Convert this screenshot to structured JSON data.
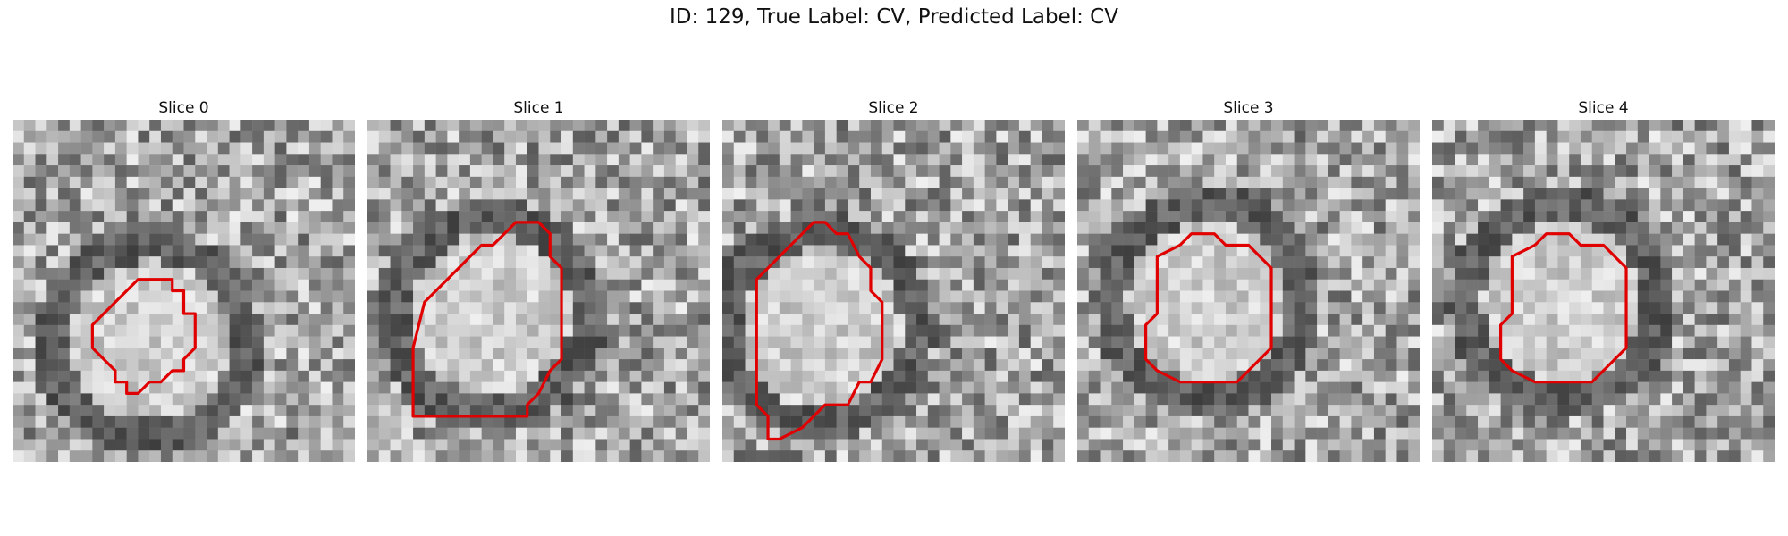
{
  "figure": {
    "title": "ID: 129, True Label: CV, Predicted Label: CV",
    "contour_color": "#e00000"
  },
  "panels": [
    {
      "title": "Slice 0",
      "image": "grayscale MRI patch with a roughly circular bright region",
      "contour": [
        [
          9,
          16
        ],
        [
          11,
          14
        ],
        [
          14,
          14
        ],
        [
          14,
          15
        ],
        [
          15,
          15
        ],
        [
          15,
          17
        ],
        [
          16,
          17
        ],
        [
          16,
          20
        ],
        [
          15,
          21
        ],
        [
          15,
          22
        ],
        [
          14,
          22
        ],
        [
          13,
          23
        ],
        [
          12,
          23
        ],
        [
          11,
          24
        ],
        [
          10,
          24
        ],
        [
          10,
          23
        ],
        [
          9,
          23
        ],
        [
          9,
          22
        ],
        [
          7,
          20
        ],
        [
          7,
          18
        ],
        [
          9,
          16
        ]
      ]
    },
    {
      "title": "Slice 1",
      "image": "grayscale MRI patch with large bright circular region",
      "contour": [
        [
          7,
          14
        ],
        [
          8,
          13
        ],
        [
          10,
          11
        ],
        [
          11,
          11
        ],
        [
          13,
          9
        ],
        [
          15,
          9
        ],
        [
          16,
          10
        ],
        [
          16,
          12
        ],
        [
          17,
          13
        ],
        [
          17,
          21
        ],
        [
          16,
          22
        ],
        [
          15,
          24
        ],
        [
          14,
          25
        ],
        [
          14,
          26
        ],
        [
          8,
          26
        ],
        [
          4,
          26
        ],
        [
          4,
          22
        ],
        [
          4,
          20
        ],
        [
          5,
          16
        ],
        [
          6,
          15
        ],
        [
          7,
          14
        ]
      ]
    },
    {
      "title": "Slice 2",
      "image": "grayscale MRI patch with dark ring around bright center",
      "contour": [
        [
          6,
          11
        ],
        [
          8,
          9
        ],
        [
          9,
          9
        ],
        [
          10,
          10
        ],
        [
          11,
          10
        ],
        [
          12,
          12
        ],
        [
          13,
          13
        ],
        [
          13,
          15
        ],
        [
          14,
          16
        ],
        [
          14,
          21
        ],
        [
          13,
          23
        ],
        [
          12,
          23
        ],
        [
          11,
          25
        ],
        [
          9,
          25
        ],
        [
          8,
          26
        ],
        [
          7,
          27
        ],
        [
          5,
          28
        ],
        [
          4,
          28
        ],
        [
          4,
          26
        ],
        [
          3,
          25
        ],
        [
          3,
          14
        ],
        [
          4,
          13
        ],
        [
          6,
          11
        ]
      ]
    },
    {
      "title": "Slice 3",
      "image": "grayscale MRI patch with bright circular region",
      "contour": [
        [
          9,
          11
        ],
        [
          10,
          10
        ],
        [
          12,
          10
        ],
        [
          13,
          11
        ],
        [
          15,
          11
        ],
        [
          16,
          12
        ],
        [
          17,
          13
        ],
        [
          17,
          20
        ],
        [
          16,
          21
        ],
        [
          15,
          22
        ],
        [
          14,
          23
        ],
        [
          9,
          23
        ],
        [
          7,
          22
        ],
        [
          6,
          21
        ],
        [
          6,
          18
        ],
        [
          7,
          17
        ],
        [
          7,
          12
        ],
        [
          9,
          11
        ]
      ]
    },
    {
      "title": "Slice 4",
      "image": "grayscale MRI patch with bright circular region",
      "contour": [
        [
          9,
          11
        ],
        [
          10,
          10
        ],
        [
          12,
          10
        ],
        [
          13,
          11
        ],
        [
          15,
          11
        ],
        [
          16,
          12
        ],
        [
          17,
          13
        ],
        [
          17,
          20
        ],
        [
          16,
          21
        ],
        [
          15,
          22
        ],
        [
          14,
          23
        ],
        [
          9,
          23
        ],
        [
          7,
          22
        ],
        [
          6,
          21
        ],
        [
          6,
          18
        ],
        [
          7,
          17
        ],
        [
          7,
          12
        ],
        [
          9,
          11
        ]
      ]
    }
  ]
}
